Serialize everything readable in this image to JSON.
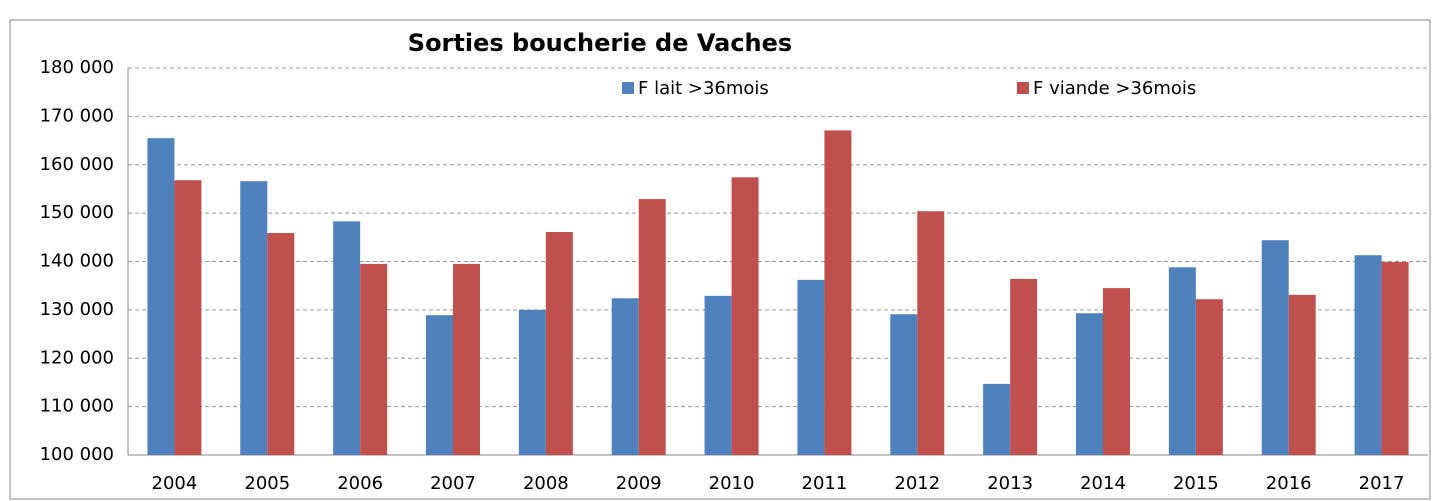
{
  "chart_data": {
    "type": "bar",
    "title": "Sorties boucherie de Vaches",
    "categories": [
      "2004",
      "2005",
      "2006",
      "2007",
      "2008",
      "2009",
      "2010",
      "2011",
      "2012",
      "2013",
      "2014",
      "2015",
      "2016",
      "2017"
    ],
    "series": [
      {
        "name": "F lait >36mois",
        "color": "#4f81bd",
        "values": [
          165500,
          156600,
          148300,
          128900,
          130000,
          132400,
          132900,
          136200,
          129100,
          114700,
          129300,
          138800,
          144400,
          141300
        ]
      },
      {
        "name": "F viande >36mois",
        "color": "#c0504d",
        "values": [
          156800,
          145900,
          139500,
          139500,
          146100,
          152900,
          157400,
          167100,
          150400,
          136400,
          134500,
          132200,
          133100,
          139900
        ]
      }
    ],
    "ylim": [
      100000,
      180000
    ],
    "yticks": [
      {
        "value": 100000,
        "label": "100 000"
      },
      {
        "value": 110000,
        "label": "110 000"
      },
      {
        "value": 120000,
        "label": "120 000"
      },
      {
        "value": 130000,
        "label": "130 000"
      },
      {
        "value": 140000,
        "label": "140 000"
      },
      {
        "value": 150000,
        "label": "150 000"
      },
      {
        "value": 160000,
        "label": "160 000"
      },
      {
        "value": 170000,
        "label": "170 000"
      },
      {
        "value": 180000,
        "label": "180 000"
      }
    ],
    "grid": true,
    "legend": "top"
  }
}
